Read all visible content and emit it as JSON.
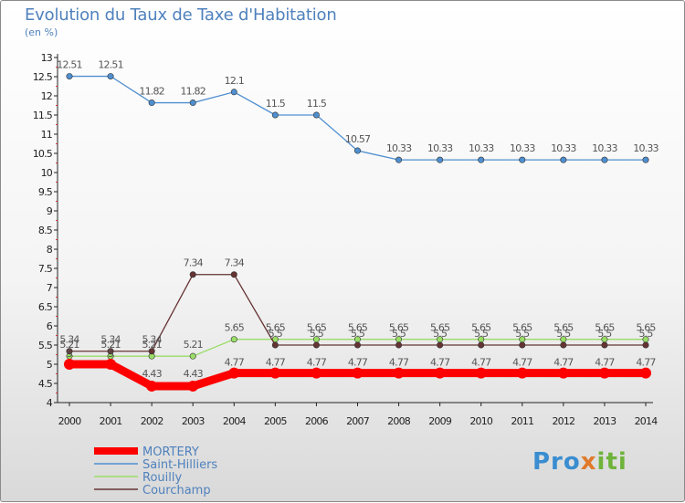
{
  "title": "Evolution du Taux de Taxe d'Habitation",
  "unit": "(en %)",
  "logo_text": "Proxiti",
  "colors": {
    "MORTERY": "#ff0000",
    "Saint-Hilliers": "#4f8fd0",
    "Rouilly": "#99dd66",
    "Courchamp": "#663333"
  },
  "chart_data": {
    "type": "line",
    "title": "Evolution du Taux de Taxe d'Habitation",
    "ylabel": "(en %)",
    "xlabel": "",
    "ylim": [
      4,
      13
    ],
    "y_ticks": [
      "4",
      "4.5",
      "5",
      "5.5",
      "6",
      "6.5",
      "7",
      "7.5",
      "8",
      "8.5",
      "9",
      "9.5",
      "10",
      "10.5",
      "11",
      "11.5",
      "12",
      "12.5",
      "13"
    ],
    "x": [
      "2000",
      "2001",
      "2002",
      "2003",
      "2004",
      "2005",
      "2006",
      "2007",
      "2008",
      "2009",
      "2010",
      "2011",
      "2012",
      "2013",
      "2014"
    ],
    "grid": false,
    "legend_position": "bottom-left",
    "series": [
      {
        "name": "MORTERY",
        "values": [
          5,
          5,
          4.43,
          4.43,
          4.77,
          4.77,
          4.77,
          4.77,
          4.77,
          4.77,
          4.77,
          4.77,
          4.77,
          4.77,
          4.77
        ],
        "labels": [
          "5",
          "5",
          "4.43",
          "4.43",
          "4.77",
          "4.77",
          "4.77",
          "4.77",
          "4.77",
          "4.77",
          "4.77",
          "4.77",
          "4.77",
          "4.77",
          "4.77"
        ]
      },
      {
        "name": "Saint-Hilliers",
        "values": [
          12.51,
          12.51,
          11.82,
          11.82,
          12.1,
          11.5,
          11.5,
          10.57,
          10.33,
          10.33,
          10.33,
          10.33,
          10.33,
          10.33,
          10.33
        ],
        "labels": [
          "12.51",
          "12.51",
          "11.82",
          "11.82",
          "12.1",
          "11.5",
          "11.5",
          "10.57",
          "10.33",
          "10.33",
          "10.33",
          "10.33",
          "10.33",
          "10.33",
          "10.33"
        ]
      },
      {
        "name": "Rouilly",
        "values": [
          5.21,
          5.21,
          5.21,
          5.21,
          5.65,
          5.65,
          5.65,
          5.65,
          5.65,
          5.65,
          5.65,
          5.65,
          5.65,
          5.65,
          5.65
        ],
        "labels": [
          "5.21",
          "5.21",
          "5.21",
          "5.21",
          "5.65",
          "5.65",
          "5.65",
          "5.65",
          "5.65",
          "5.65",
          "5.65",
          "5.65",
          "5.65",
          "5.65",
          "5.65"
        ]
      },
      {
        "name": "Courchamp",
        "values": [
          5.34,
          5.34,
          5.34,
          7.34,
          7.34,
          5.5,
          5.5,
          5.5,
          5.5,
          5.5,
          5.5,
          5.5,
          5.5,
          5.5,
          5.5
        ],
        "labels": [
          "5.34",
          "5.34",
          "5.34",
          "7.34",
          "7.34",
          "5.5",
          "5.5",
          "5.5",
          "5.5",
          "5.5",
          "5.5",
          "5.5",
          "5.5",
          "5.5",
          "5.5"
        ]
      }
    ]
  }
}
